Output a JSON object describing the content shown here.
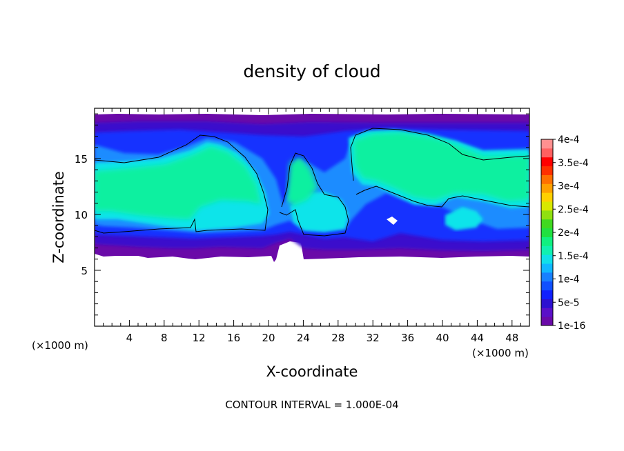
{
  "chart_data": {
    "type": "heatmap",
    "title": "density of cloud",
    "xlabel": "X-coordinate",
    "ylabel": "Z-coordinate",
    "x_unit_left": "(×1000 m)",
    "x_unit_right": "(×1000 m)",
    "footer": "CONTOUR INTERVAL = 1.000E-04",
    "xlim": [
      0,
      50
    ],
    "ylim": [
      0,
      19.5
    ],
    "x_ticks": [
      "4",
      "8",
      "12",
      "16",
      "20",
      "24",
      "28",
      "32",
      "36",
      "40",
      "44",
      "48"
    ],
    "y_ticks": [
      "5",
      "10",
      "15"
    ],
    "colorbar": {
      "labels": [
        "1e-16",
        "5e-5",
        "1e-4",
        "1.5e-4",
        "2e-4",
        "2.5e-4",
        "3e-4",
        "3.5e-4",
        "4e-4"
      ],
      "colors": [
        "#6a0aa8",
        "#5a10c8",
        "#2c10d0",
        "#1020ff",
        "#1050ff",
        "#1880ff",
        "#10b8ff",
        "#10e0e8",
        "#10f0b0",
        "#10f080",
        "#20e040",
        "#40d820",
        "#90e010",
        "#d8e800",
        "#ffd000",
        "#ffa000",
        "#ff7000",
        "#ff3000",
        "#ff0000",
        "#ff6060",
        "#ff9090"
      ]
    },
    "cloud_regions": [
      {
        "level": "1e-16",
        "x_range": [
          0,
          50
        ],
        "z_range": [
          6.5,
          19.3
        ]
      },
      {
        "level": "1.5e-4",
        "x_range": [
          0,
          20
        ],
        "z_range": [
          8.6,
          16.8
        ]
      },
      {
        "level": "1.5e-4",
        "x_range": [
          29,
          50
        ],
        "z_range": [
          10.5,
          17.8
        ]
      }
    ]
  }
}
